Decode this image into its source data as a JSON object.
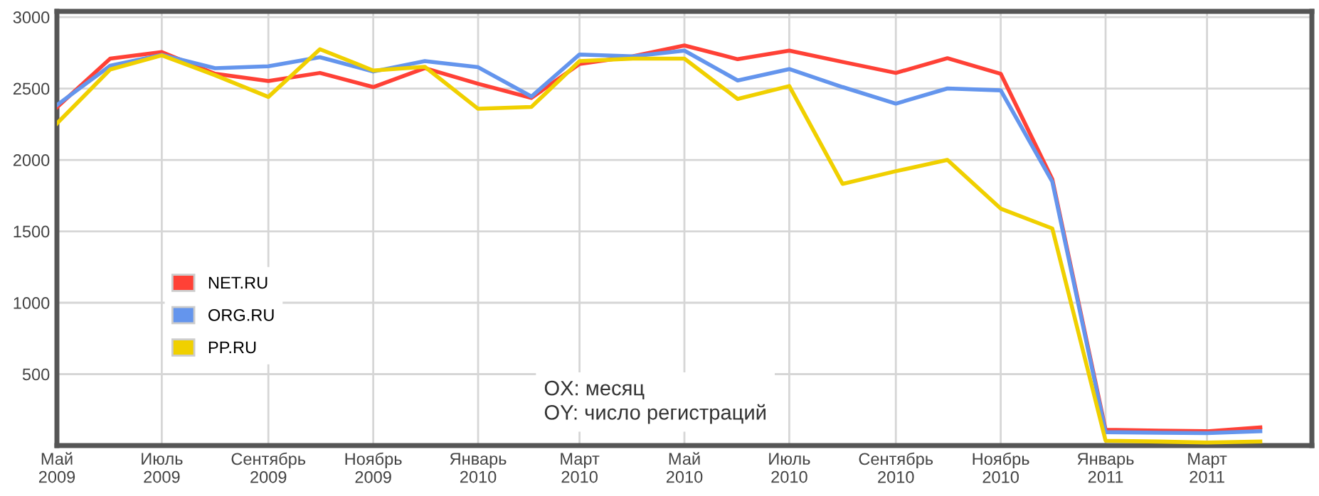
{
  "chart_data": {
    "type": "line",
    "x": [
      "2009-05",
      "2009-06",
      "2009-07",
      "2009-08",
      "2009-09",
      "2009-10",
      "2009-11",
      "2009-12",
      "2010-01",
      "2010-02",
      "2010-03",
      "2010-04",
      "2010-05",
      "2010-06",
      "2010-07",
      "2010-08",
      "2010-09",
      "2010-10",
      "2010-11",
      "2010-12",
      "2011-01",
      "2011-02",
      "2011-03",
      "2011-04"
    ],
    "series": [
      {
        "name": "NET.RU",
        "color": "#ff4136",
        "values": [
          2368,
          2709,
          2755,
          2603,
          2553,
          2609,
          2510,
          2643,
          2533,
          2434,
          2672,
          2725,
          2801,
          2705,
          2765,
          2686,
          2609,
          2712,
          2603,
          1865,
          110,
          104,
          100,
          127
        ]
      },
      {
        "name": "ORG.RU",
        "color": "#6495ed",
        "values": [
          2384,
          2659,
          2735,
          2642,
          2656,
          2719,
          2619,
          2692,
          2649,
          2444,
          2738,
          2725,
          2765,
          2556,
          2636,
          2510,
          2394,
          2500,
          2487,
          1848,
          94,
          90,
          87,
          100
        ]
      },
      {
        "name": "PP.RU",
        "color": "#f0d000",
        "values": [
          2255,
          2633,
          2732,
          2593,
          2441,
          2775,
          2626,
          2652,
          2358,
          2371,
          2692,
          2709,
          2709,
          2427,
          2517,
          1832,
          1921,
          2000,
          1659,
          1520,
          34,
          28,
          21,
          28
        ]
      }
    ],
    "xlim": [
      "2009-05",
      "2011-05"
    ],
    "xticks": [
      {
        "value": "2009-05",
        "label": "Май\n2009"
      },
      {
        "value": "2009-07",
        "label": "Июль\n2009"
      },
      {
        "value": "2009-09",
        "label": "Сентябрь\n2009"
      },
      {
        "value": "2009-11",
        "label": "Ноябрь\n2009"
      },
      {
        "value": "2010-01",
        "label": "Январь\n2010"
      },
      {
        "value": "2010-03",
        "label": "Март\n2010"
      },
      {
        "value": "2010-05",
        "label": "Май\n2010"
      },
      {
        "value": "2010-07",
        "label": "Июль\n2010"
      },
      {
        "value": "2010-09",
        "label": "Сентябрь\n2010"
      },
      {
        "value": "2010-11",
        "label": "Ноябрь\n2010"
      },
      {
        "value": "2011-01",
        "label": "Январь\n2011"
      },
      {
        "value": "2011-03",
        "label": "Март\n2011"
      }
    ],
    "ylim": [
      0,
      3040
    ],
    "yticks": [
      500,
      1000,
      1500,
      2000,
      2500,
      3000
    ],
    "grid": true,
    "legend": "bottom left",
    "marker": "none",
    "line_style": "solid",
    "annotations": [
      "OX: месяц",
      "OY: число регистраций"
    ]
  }
}
